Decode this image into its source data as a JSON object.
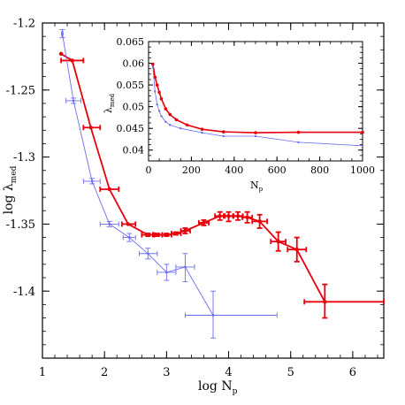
{
  "colors": {
    "red": "#e8000b",
    "blue": "#6b6bf0",
    "axis": "#000000"
  },
  "chart_data": [
    {
      "type": "line",
      "xlabel": "log N",
      "xlabel_sub": "p",
      "ylabel": "log λ",
      "ylabel_sub": "med",
      "xlim": [
        1,
        6.5
      ],
      "ylim": [
        -1.45,
        -1.2
      ],
      "xticks": [
        1,
        2,
        3,
        4,
        5,
        6
      ],
      "xtick_labels": [
        "1",
        "2",
        "3",
        "4",
        "5",
        "6"
      ],
      "yticks": [
        -1.2,
        -1.25,
        -1.3,
        -1.35,
        -1.4
      ],
      "ytick_labels": [
        "-1.2",
        "-1.25",
        "-1.3",
        "-1.35",
        "-1.4"
      ],
      "series": [
        {
          "color": "#e8000b",
          "points": [
            {
              "x": 1.3,
              "y": -1.223,
              "xlo": 1.3,
              "xhi": 1.3,
              "ylo": -1.223,
              "yhi": -1.223
            },
            {
              "x": 1.48,
              "y": -1.228,
              "xlo": 1.3,
              "xhi": 1.66,
              "ylo": -1.228,
              "yhi": -1.228
            },
            {
              "x": 1.78,
              "y": -1.278,
              "xlo": 1.66,
              "xhi": 1.93,
              "ylo": -1.278,
              "yhi": -1.278
            },
            {
              "x": 2.08,
              "y": -1.324,
              "xlo": 1.93,
              "xhi": 2.23,
              "ylo": -1.324,
              "yhi": -1.324
            },
            {
              "x": 2.38,
              "y": -1.35,
              "xlo": 2.28,
              "xhi": 2.5,
              "ylo": -1.35,
              "yhi": -1.35
            },
            {
              "x": 2.7,
              "y": -1.358,
              "xlo": 2.6,
              "xhi": 2.8,
              "ylo": -1.359,
              "yhi": -1.357
            },
            {
              "x": 2.85,
              "y": -1.358,
              "xlo": 2.78,
              "xhi": 2.93,
              "ylo": -1.359,
              "yhi": -1.357
            },
            {
              "x": 3.0,
              "y": -1.358,
              "xlo": 2.93,
              "xhi": 3.08,
              "ylo": -1.359,
              "yhi": -1.357
            },
            {
              "x": 3.15,
              "y": -1.357,
              "xlo": 3.08,
              "xhi": 3.23,
              "ylo": -1.358,
              "yhi": -1.356
            },
            {
              "x": 3.3,
              "y": -1.355,
              "xlo": 3.23,
              "xhi": 3.38,
              "ylo": -1.357,
              "yhi": -1.353
            },
            {
              "x": 3.6,
              "y": -1.349,
              "xlo": 3.52,
              "xhi": 3.68,
              "ylo": -1.351,
              "yhi": -1.347
            },
            {
              "x": 3.86,
              "y": -1.344,
              "xlo": 3.78,
              "xhi": 3.94,
              "ylo": -1.347,
              "yhi": -1.341
            },
            {
              "x": 4.0,
              "y": -1.344,
              "xlo": 3.92,
              "xhi": 4.08,
              "ylo": -1.348,
              "yhi": -1.341
            },
            {
              "x": 4.15,
              "y": -1.344,
              "xlo": 4.07,
              "xhi": 4.23,
              "ylo": -1.347,
              "yhi": -1.341
            },
            {
              "x": 4.3,
              "y": -1.345,
              "xlo": 4.22,
              "xhi": 4.38,
              "ylo": -1.349,
              "yhi": -1.341
            },
            {
              "x": 4.5,
              "y": -1.348,
              "xlo": 4.38,
              "xhi": 4.62,
              "ylo": -1.353,
              "yhi": -1.343
            },
            {
              "x": 4.8,
              "y": -1.363,
              "xlo": 4.68,
              "xhi": 4.92,
              "ylo": -1.37,
              "yhi": -1.356
            },
            {
              "x": 5.1,
              "y": -1.369,
              "xlo": 4.95,
              "xhi": 5.25,
              "ylo": -1.378,
              "yhi": -1.36
            },
            {
              "x": 5.55,
              "y": -1.408,
              "xlo": 5.22,
              "xhi": 6.5,
              "ylo": -1.42,
              "yhi": -1.395
            }
          ]
        },
        {
          "color": "#6b6bf0",
          "points": [
            {
              "x": 1.32,
              "y": -1.208,
              "xlo": 1.31,
              "xhi": 1.33,
              "ylo": -1.211,
              "yhi": -1.205
            },
            {
              "x": 1.5,
              "y": -1.258,
              "xlo": 1.38,
              "xhi": 1.62,
              "ylo": -1.26,
              "yhi": -1.256
            },
            {
              "x": 1.8,
              "y": -1.318,
              "xlo": 1.66,
              "xhi": 1.93,
              "ylo": -1.32,
              "yhi": -1.316
            },
            {
              "x": 2.08,
              "y": -1.35,
              "xlo": 1.93,
              "xhi": 2.23,
              "ylo": -1.352,
              "yhi": -1.348
            },
            {
              "x": 2.4,
              "y": -1.36,
              "xlo": 2.3,
              "xhi": 2.5,
              "ylo": -1.363,
              "yhi": -1.357
            },
            {
              "x": 2.7,
              "y": -1.372,
              "xlo": 2.56,
              "xhi": 2.85,
              "ylo": -1.376,
              "yhi": -1.368
            },
            {
              "x": 3.0,
              "y": -1.386,
              "xlo": 2.85,
              "xhi": 3.15,
              "ylo": -1.392,
              "yhi": -1.38
            },
            {
              "x": 3.3,
              "y": -1.382,
              "xlo": 3.15,
              "xhi": 3.45,
              "ylo": -1.393,
              "yhi": -1.372
            },
            {
              "x": 3.75,
              "y": -1.418,
              "xlo": 3.3,
              "xhi": 4.78,
              "ylo": -1.435,
              "yhi": -1.4
            }
          ]
        }
      ]
    },
    {
      "type": "line",
      "xlabel": "N",
      "xlabel_sub": "p",
      "ylabel": "λ",
      "ylabel_sub": "med",
      "xlim": [
        0,
        1000
      ],
      "ylim": [
        0.0375,
        0.065
      ],
      "xticks": [
        0,
        200,
        400,
        600,
        800,
        1000
      ],
      "xtick_labels": [
        "0",
        "200",
        "400",
        "600",
        "800",
        "1000"
      ],
      "yticks": [
        0.04,
        0.045,
        0.05,
        0.055,
        0.06,
        0.065
      ],
      "ytick_labels": [
        "0.04",
        "0.045",
        "0.05",
        "0.055",
        "0.06",
        "0.065"
      ],
      "series": [
        {
          "color": "#e8000b",
          "points": [
            {
              "x": 20,
              "y": 0.0598
            },
            {
              "x": 30,
              "y": 0.0568
            },
            {
              "x": 40,
              "y": 0.055
            },
            {
              "x": 50,
              "y": 0.0533
            },
            {
              "x": 60,
              "y": 0.0518
            },
            {
              "x": 80,
              "y": 0.0495
            },
            {
              "x": 100,
              "y": 0.0482
            },
            {
              "x": 130,
              "y": 0.047
            },
            {
              "x": 180,
              "y": 0.0458
            },
            {
              "x": 250,
              "y": 0.0448
            },
            {
              "x": 350,
              "y": 0.0442
            },
            {
              "x": 500,
              "y": 0.044
            },
            {
              "x": 700,
              "y": 0.0441
            },
            {
              "x": 1000,
              "y": 0.0441
            }
          ]
        },
        {
          "color": "#6b6bf0",
          "points": [
            {
              "x": 20,
              "y": 0.0592
            },
            {
              "x": 30,
              "y": 0.0535
            },
            {
              "x": 40,
              "y": 0.0505
            },
            {
              "x": 50,
              "y": 0.049
            },
            {
              "x": 60,
              "y": 0.0478
            },
            {
              "x": 80,
              "y": 0.0465
            },
            {
              "x": 100,
              "y": 0.0458
            },
            {
              "x": 150,
              "y": 0.045
            },
            {
              "x": 250,
              "y": 0.044
            },
            {
              "x": 350,
              "y": 0.0432
            },
            {
              "x": 500,
              "y": 0.0432
            },
            {
              "x": 700,
              "y": 0.0418
            },
            {
              "x": 1000,
              "y": 0.041
            }
          ]
        }
      ]
    }
  ]
}
